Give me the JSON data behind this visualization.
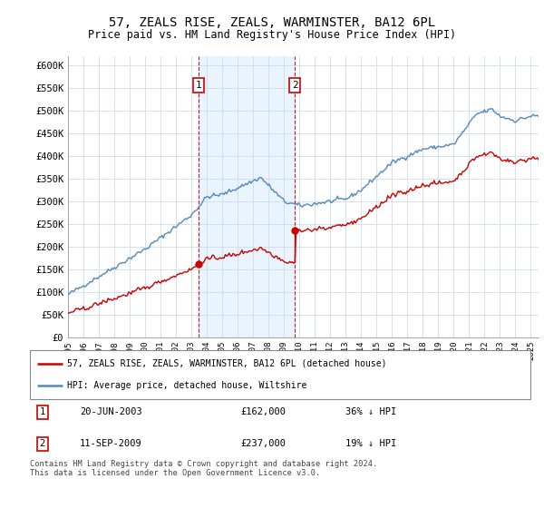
{
  "title": "57, ZEALS RISE, ZEALS, WARMINSTER, BA12 6PL",
  "subtitle": "Price paid vs. HM Land Registry's House Price Index (HPI)",
  "ylabel_ticks": [
    "£0",
    "£50K",
    "£100K",
    "£150K",
    "£200K",
    "£250K",
    "£300K",
    "£350K",
    "£400K",
    "£450K",
    "£500K",
    "£550K",
    "£600K"
  ],
  "ytick_values": [
    0,
    50000,
    100000,
    150000,
    200000,
    250000,
    300000,
    350000,
    400000,
    450000,
    500000,
    550000,
    600000
  ],
  "hpi_color": "#5588bb",
  "price_color": "#cc0000",
  "shade_color": "#ddeeff",
  "marker1_x": 2003.47,
  "marker1_price": 162000,
  "marker2_x": 2009.71,
  "marker2_price": 237000,
  "legend_line1": "57, ZEALS RISE, ZEALS, WARMINSTER, BA12 6PL (detached house)",
  "legend_line2": "HPI: Average price, detached house, Wiltshire",
  "table_row1": [
    "1",
    "20-JUN-2003",
    "£162,000",
    "36% ↓ HPI"
  ],
  "table_row2": [
    "2",
    "11-SEP-2009",
    "£237,000",
    "19% ↓ HPI"
  ],
  "footer": "Contains HM Land Registry data © Crown copyright and database right 2024.\nThis data is licensed under the Open Government Licence v3.0.",
  "xmin": 1995.0,
  "xmax": 2025.5,
  "ymin": 0,
  "ymax": 620000
}
